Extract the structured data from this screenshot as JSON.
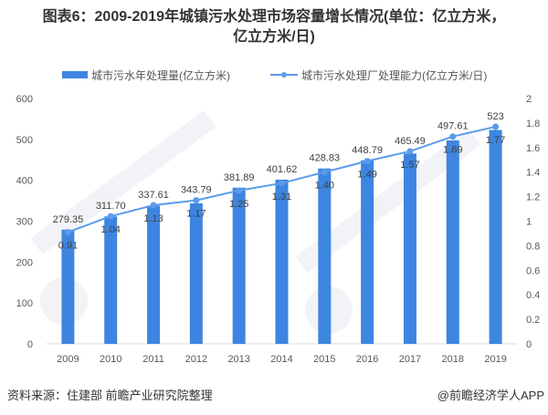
{
  "title_line1": "图表6：2009-2019年城镇污水处理市场容量增长情况(单位：亿立方米，",
  "title_line2": "亿立方米/日)",
  "source": "资料来源：住建部 前瞻产业研究院整理",
  "brand": "@前瞻经济学人APP",
  "watermark": "前瞻产业研究院",
  "chart_data": {
    "type": "bar+line",
    "categories": [
      "2009",
      "2010",
      "2011",
      "2012",
      "2013",
      "2014",
      "2015",
      "2016",
      "2017",
      "2018",
      "2019"
    ],
    "series": [
      {
        "name": "城市污水年处理量(亿立方米)",
        "type": "bar",
        "axis": "left",
        "color": "#3d85e0",
        "values": [
          279.35,
          311.7,
          337.61,
          343.79,
          381.89,
          401.62,
          428.83,
          448.79,
          465.49,
          497.61,
          523
        ],
        "labels": [
          "279.35",
          "311.70",
          "337.61",
          "343.79",
          "381.89",
          "401.62",
          "428.83",
          "448.79",
          "465.49",
          "497.61",
          "523"
        ]
      },
      {
        "name": "城市污水处理厂处理能力(亿立方米/日)",
        "type": "line",
        "axis": "right",
        "color": "#5b9bea",
        "values": [
          0.91,
          1.04,
          1.13,
          1.17,
          1.25,
          1.31,
          1.4,
          1.49,
          1.57,
          1.69,
          1.77
        ],
        "labels": [
          "0.91",
          "1.04",
          "1.13",
          "1.17",
          "1.25",
          "1.31",
          "1.40",
          "1.49",
          "1.57",
          "1.69",
          "1.77"
        ]
      }
    ],
    "y_left": {
      "range": [
        0,
        600
      ],
      "ticks": [
        "0",
        "100",
        "200",
        "300",
        "400",
        "500",
        "600"
      ]
    },
    "y_right": {
      "range": [
        0,
        2
      ],
      "ticks": [
        "0",
        "0.2",
        "0.4",
        "0.6",
        "0.8",
        "1",
        "1.2",
        "1.4",
        "1.6",
        "1.8",
        "2"
      ]
    },
    "legend_position": "top",
    "grid": false
  }
}
